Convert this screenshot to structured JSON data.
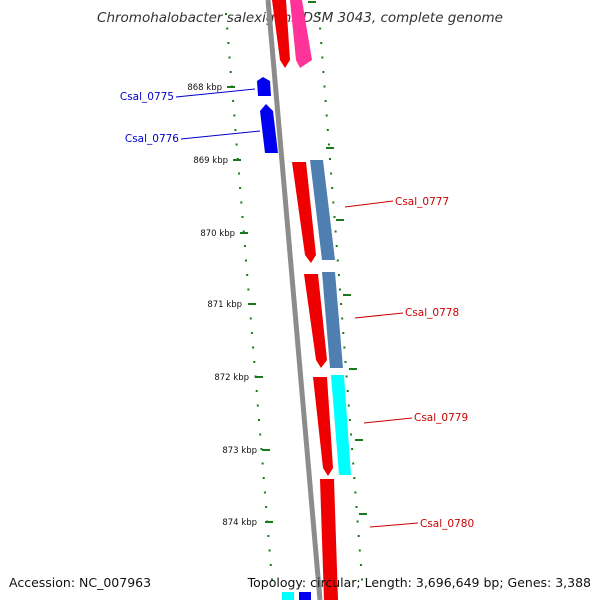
{
  "title": "Chromohalobacter salexigens DSM 3043, complete genome",
  "footer": {
    "accession": "Accession: NC_007963",
    "topology": "Topology: circular; Length: 3,696,649 bp; Genes: 3,388"
  },
  "colors": {
    "backbone": "#8c8c8c",
    "tick": "#1a7a1a",
    "forward_label": "#0000cc",
    "reverse_label": "#cc0000",
    "cds_forward": "#0000ee",
    "cds_reverse": "#ee0000",
    "feature_steelblue": "#4f7fb0",
    "feature_cyan": "#00ffff",
    "feature_pink": "#ff3399"
  },
  "scale": {
    "ticks": [
      {
        "label": "868 kbp"
      },
      {
        "label": "869 kbp"
      },
      {
        "label": "870 kbp"
      },
      {
        "label": "871 kbp"
      },
      {
        "label": "872 kbp"
      },
      {
        "label": "873 kbp"
      },
      {
        "label": "874 kbp"
      }
    ]
  },
  "genes": [
    {
      "label": "Csal_0775",
      "strand": "forward"
    },
    {
      "label": "Csal_0776",
      "strand": "forward"
    },
    {
      "label": "Csal_0777",
      "strand": "reverse"
    },
    {
      "label": "Csal_0778",
      "strand": "reverse"
    },
    {
      "label": "Csal_0779",
      "strand": "reverse"
    },
    {
      "label": "Csal_0780",
      "strand": "reverse"
    }
  ]
}
